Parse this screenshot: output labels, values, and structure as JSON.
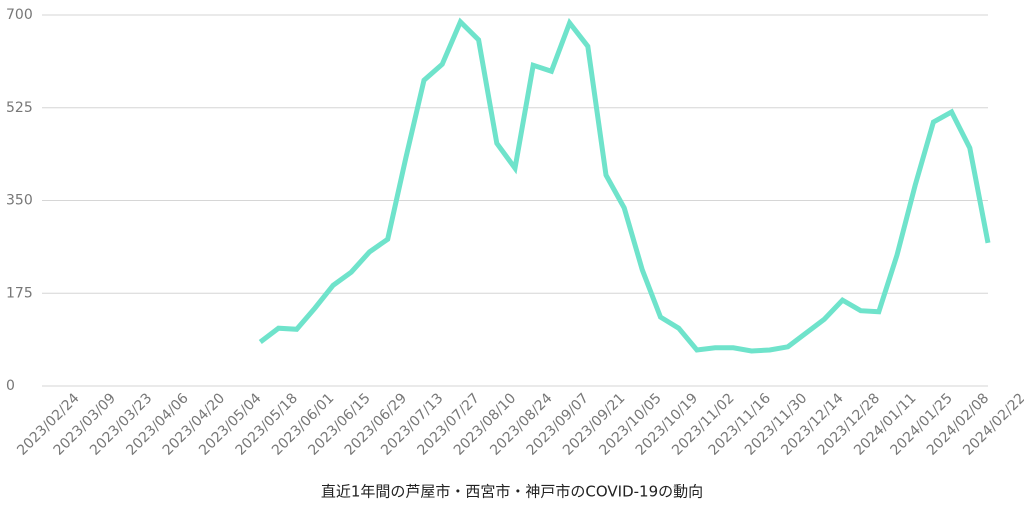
{
  "chart_data": {
    "type": "line",
    "title": "直近1年間の芦屋市・西宮市・神戸市のCOVID-19の動向",
    "categories": [
      "2023/02/24",
      null,
      "2023/03/09",
      null,
      "2023/03/23",
      null,
      "2023/04/06",
      null,
      "2023/04/20",
      null,
      "2023/05/04",
      null,
      "2023/05/18",
      null,
      "2023/06/01",
      null,
      "2023/06/15",
      null,
      "2023/06/29",
      null,
      "2023/07/13",
      null,
      "2023/07/27",
      null,
      "2023/08/10",
      null,
      "2023/08/24",
      null,
      "2023/09/07",
      null,
      "2023/09/21",
      null,
      "2023/10/05",
      null,
      "2023/10/19",
      null,
      "2023/11/02",
      null,
      "2023/11/16",
      null,
      "2023/11/30",
      null,
      "2023/12/14",
      null,
      "2023/12/28",
      null,
      "2024/01/11",
      null,
      "2024/01/25",
      null,
      "2024/02/08",
      null,
      "2024/02/22"
    ],
    "series": [
      {
        "name": "COVID-19",
        "color": "#6fe3cb",
        "values": [
          null,
          null,
          null,
          null,
          null,
          null,
          null,
          null,
          null,
          null,
          null,
          null,
          83,
          109,
          107,
          147,
          190,
          215,
          253,
          277,
          430,
          577,
          607,
          687,
          653,
          458,
          411,
          605,
          594,
          685,
          641,
          398,
          336,
          219,
          130,
          109,
          68,
          72,
          72,
          66,
          68,
          74,
          100,
          126,
          162,
          142,
          140,
          247,
          379,
          498,
          517,
          449,
          270
        ]
      }
    ],
    "ylim": [
      0,
      700
    ],
    "yticks": [
      0,
      175,
      350,
      525,
      700
    ],
    "grid": true
  }
}
